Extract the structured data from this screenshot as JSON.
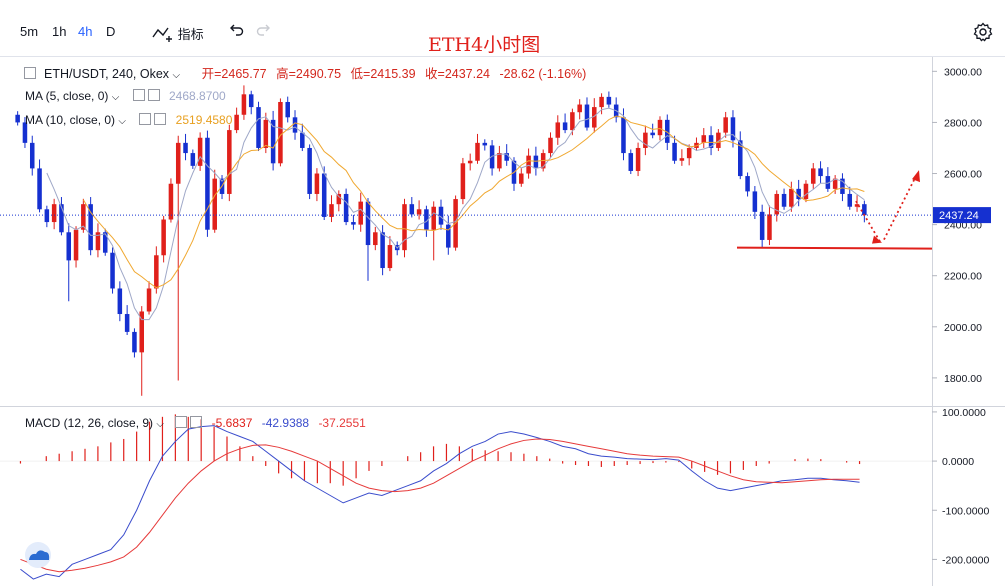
{
  "toolbar": {
    "intervals": [
      "5m",
      "1h",
      "4h",
      "D"
    ],
    "active_interval": "4h",
    "indicators_label": "指标",
    "undo_icon": "undo-icon",
    "redo_icon": "redo-icon",
    "settings_icon": "gear-icon"
  },
  "title": "ETH4小时图",
  "legend": {
    "symbol": "ETH/USDT, 240, Okex",
    "open": "开=2465.77",
    "high": "高=2490.75",
    "low": "低=2415.39",
    "close": "收=2437.24",
    "change": "-28.62 (-1.16%)"
  },
  "ma5": {
    "label": "MA (5, close, 0)",
    "value": "2468.8700",
    "color": "#9fa8c8"
  },
  "ma10": {
    "label": "MA (10, close, 0)",
    "value": "2519.4580",
    "color": "#f0a830"
  },
  "macd": {
    "label": "MACD (12, 26, close, 9)",
    "hist": "-5.6837",
    "macd": "-42.9388",
    "signal": "-37.2551",
    "macd_color": "#3a4ccc",
    "signal_color": "#e63a3a",
    "hist_color": "#e0201b"
  },
  "colors": {
    "up": "#e0201b",
    "down": "#1530d0",
    "price_tag": "#1530d0"
  },
  "price_tag": "2437.24",
  "chart_data": [
    {
      "type": "candlestick",
      "title": "ETH4小时图",
      "y_ticks": [
        "3000.00",
        "2800.00",
        "2600.00",
        "2400.00",
        "2200.00",
        "2000.00",
        "1800.00"
      ],
      "ylim": [
        1690,
        3060
      ],
      "last_price": 2437.24,
      "support_level": 2310,
      "series": {
        "close": [
          2800,
          2720,
          2620,
          2460,
          2410,
          2480,
          2370,
          2260,
          2380,
          2480,
          2300,
          2370,
          2290,
          2150,
          2050,
          1980,
          1900,
          2060,
          2150,
          2280,
          2420,
          2560,
          2720,
          2680,
          2630,
          2740,
          2380,
          2580,
          2520,
          2770,
          2830,
          2910,
          2860,
          2700,
          2810,
          2640,
          2880,
          2820,
          2760,
          2700,
          2520,
          2600,
          2430,
          2480,
          2520,
          2410,
          2400,
          2490,
          2320,
          2370,
          2230,
          2320,
          2300,
          2480,
          2440,
          2460,
          2380,
          2470,
          2400,
          2310,
          2500,
          2640,
          2650,
          2720,
          2710,
          2620,
          2680,
          2650,
          2560,
          2600,
          2670,
          2620,
          2680,
          2740,
          2800,
          2770,
          2840,
          2870,
          2780,
          2860,
          2900,
          2870,
          2820,
          2680,
          2610,
          2700,
          2760,
          2750,
          2810,
          2720,
          2650,
          2660,
          2700,
          2720,
          2750,
          2700,
          2760,
          2820,
          2730,
          2590,
          2530,
          2450,
          2340,
          2440,
          2520,
          2470,
          2540,
          2500,
          2560,
          2620,
          2590,
          2540,
          2580,
          2520,
          2470,
          2480,
          2437
        ],
        "wick_lows": {
          "7": 2100,
          "17": 1730,
          "22": 1790,
          "48": 2180,
          "57": 2260,
          "102": 2310
        }
      },
      "markers": {
        "ma_label_overlay": "2519.4580"
      }
    },
    {
      "type": "line",
      "title": "MACD (12, 26, close, 9)",
      "y_ticks": [
        "100.0000",
        "0.0000",
        "-100.0000",
        "-200.0000"
      ],
      "ylim": [
        -250,
        110
      ],
      "series": [
        {
          "name": "MACD",
          "values": [
            -220,
            -240,
            -230,
            -235,
            -210,
            -200,
            -190,
            -180,
            -150,
            -100,
            -40,
            10,
            40,
            65,
            70,
            72,
            60,
            50,
            40,
            20,
            0,
            -20,
            -40,
            -55,
            -70,
            -85,
            -75,
            -65,
            -70,
            -60,
            -50,
            -40,
            -20,
            -5,
            15,
            30,
            40,
            55,
            60,
            55,
            48,
            40,
            30,
            25,
            15,
            10,
            8,
            5,
            4,
            3,
            5,
            2,
            -20,
            -40,
            -55,
            -60,
            -55,
            -50,
            -45,
            -40,
            -38,
            -35,
            -35,
            -38,
            -40,
            -43
          ]
        },
        {
          "name": "Signal",
          "values": [
            -200,
            -210,
            -220,
            -225,
            -222,
            -218,
            -212,
            -205,
            -195,
            -175,
            -145,
            -110,
            -75,
            -45,
            -20,
            0,
            15,
            25,
            32,
            33,
            28,
            20,
            10,
            0,
            -15,
            -30,
            -45,
            -55,
            -60,
            -62,
            -60,
            -55,
            -45,
            -30,
            -15,
            0,
            12,
            25,
            35,
            42,
            45,
            44,
            40,
            35,
            30,
            25,
            20,
            15,
            12,
            10,
            9,
            8,
            0,
            -10,
            -20,
            -30,
            -38,
            -42,
            -43,
            -44,
            -42,
            -40,
            -38,
            -37,
            -37,
            -37
          ]
        },
        {
          "name": "Hist",
          "values": [
            -5,
            0,
            10,
            15,
            20,
            25,
            30,
            38,
            45,
            60,
            80,
            90,
            95,
            90,
            85,
            70,
            50,
            30,
            10,
            -10,
            -25,
            -35,
            -40,
            -45,
            -45,
            -50,
            -35,
            -20,
            -10,
            0,
            10,
            18,
            30,
            35,
            30,
            25,
            22,
            20,
            18,
            15,
            10,
            5,
            -5,
            -8,
            -10,
            -12,
            -10,
            -8,
            -6,
            -4,
            -3,
            -2,
            -15,
            -22,
            -28,
            -25,
            -18,
            -10,
            -5,
            0,
            4,
            5,
            4,
            0,
            -3,
            -6
          ]
        }
      ]
    }
  ]
}
